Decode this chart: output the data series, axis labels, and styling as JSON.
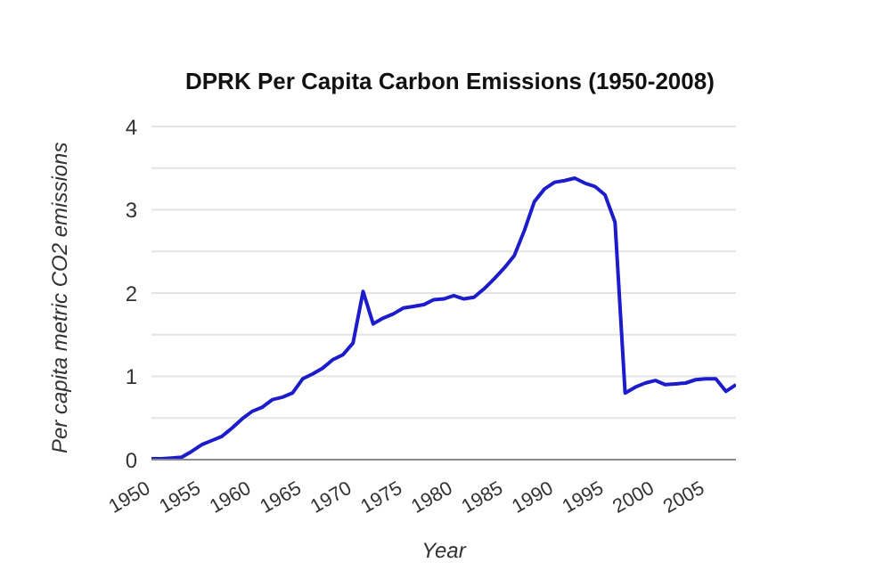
{
  "chart_data": {
    "type": "line",
    "title": "DPRK Per Capita Carbon Emissions (1950-2008)",
    "xlabel": "Year",
    "ylabel": "Per capita metric CO2 emissions",
    "x": [
      1950,
      1951,
      1952,
      1953,
      1954,
      1955,
      1956,
      1957,
      1958,
      1959,
      1960,
      1961,
      1962,
      1963,
      1964,
      1965,
      1966,
      1967,
      1968,
      1969,
      1970,
      1971,
      1972,
      1973,
      1974,
      1975,
      1976,
      1977,
      1978,
      1979,
      1980,
      1981,
      1982,
      1983,
      1984,
      1985,
      1986,
      1987,
      1988,
      1989,
      1990,
      1991,
      1992,
      1993,
      1994,
      1995,
      1996,
      1997,
      1998,
      1999,
      2000,
      2001,
      2002,
      2003,
      2004,
      2005,
      2006,
      2007,
      2008
    ],
    "series": [
      {
        "color": "#1c1ccc",
        "values": [
          0.01,
          0.01,
          0.02,
          0.03,
          0.1,
          0.18,
          0.23,
          0.28,
          0.38,
          0.49,
          0.58,
          0.63,
          0.72,
          0.75,
          0.8,
          0.97,
          1.03,
          1.1,
          1.2,
          1.26,
          1.4,
          2.02,
          1.63,
          1.7,
          1.75,
          1.82,
          1.84,
          1.86,
          1.92,
          1.93,
          1.97,
          1.93,
          1.95,
          2.05,
          2.17,
          2.3,
          2.45,
          2.75,
          3.1,
          3.25,
          3.33,
          3.35,
          3.38,
          3.32,
          3.28,
          3.18,
          2.85,
          0.8,
          0.87,
          0.92,
          0.95,
          0.9,
          0.91,
          0.92,
          0.96,
          0.97,
          0.97,
          0.82,
          0.9
        ]
      }
    ],
    "xlim": [
      1950,
      2008
    ],
    "xticks": [
      1950,
      1955,
      1960,
      1965,
      1970,
      1975,
      1980,
      1985,
      1990,
      1995,
      2000,
      2005
    ],
    "ylim": [
      0,
      4
    ],
    "yticks": [
      0,
      {
        "value": 0.5,
        "label": null
      },
      1,
      {
        "value": 1.5,
        "label": null
      },
      2,
      {
        "value": 2.5,
        "label": null
      },
      3,
      {
        "value": 3.5,
        "label": null
      },
      4
    ],
    "grid": "y",
    "legend": false,
    "marker": "none",
    "line_style": "solid"
  }
}
